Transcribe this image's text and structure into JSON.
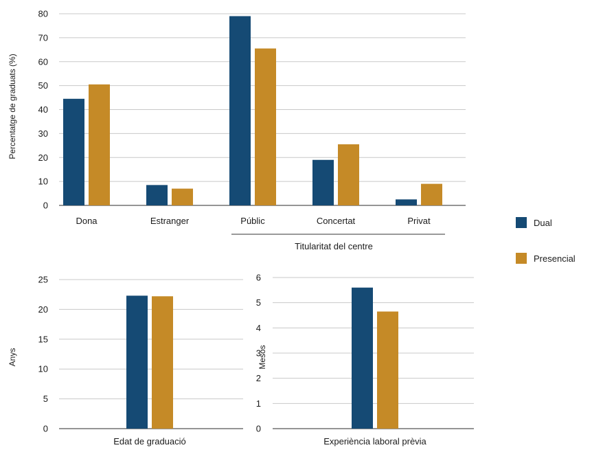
{
  "colors": {
    "dual": "#154a74",
    "presencial": "#c58a27",
    "grid": "#c8c8c8",
    "axis": "#555555"
  },
  "legend": {
    "dual": "Dual",
    "presencial": "Presencial"
  },
  "chart_data": [
    {
      "type": "bar",
      "categories": [
        "Dona",
        "Estranger",
        "Públic",
        "Concertat",
        "Privat"
      ],
      "series": [
        {
          "name": "Dual",
          "values": [
            44.5,
            8.5,
            79,
            19,
            2.5
          ]
        },
        {
          "name": "Presencial",
          "values": [
            50.5,
            7,
            65.5,
            25.5,
            9
          ]
        }
      ],
      "ylabel": "Percentatge de graduats (%)",
      "group_label": "Titularitat del centre",
      "ylim": [
        0,
        80
      ],
      "yticks": [
        "0",
        "10",
        "20",
        "30",
        "40",
        "50",
        "60",
        "70",
        "80"
      ],
      "grid": true
    },
    {
      "type": "bar",
      "categories": [
        "Edat de graduació"
      ],
      "series": [
        {
          "name": "Dual",
          "values": [
            22.3
          ]
        },
        {
          "name": "Presencial",
          "values": [
            22.2
          ]
        }
      ],
      "ylabel": "Anys",
      "ylim": [
        0,
        25
      ],
      "yticks": [
        "0",
        "5",
        "10",
        "15",
        "20",
        "25"
      ],
      "grid": true
    },
    {
      "type": "bar",
      "categories": [
        "Experiència laboral prèvia"
      ],
      "series": [
        {
          "name": "Dual",
          "values": [
            5.6
          ]
        },
        {
          "name": "Presencial",
          "values": [
            4.65
          ]
        }
      ],
      "ylabel": "Mesos",
      "ylim": [
        0,
        6
      ],
      "yticks": [
        "0",
        "1",
        "2",
        "3",
        "4",
        "5",
        "6"
      ],
      "grid": true
    }
  ]
}
